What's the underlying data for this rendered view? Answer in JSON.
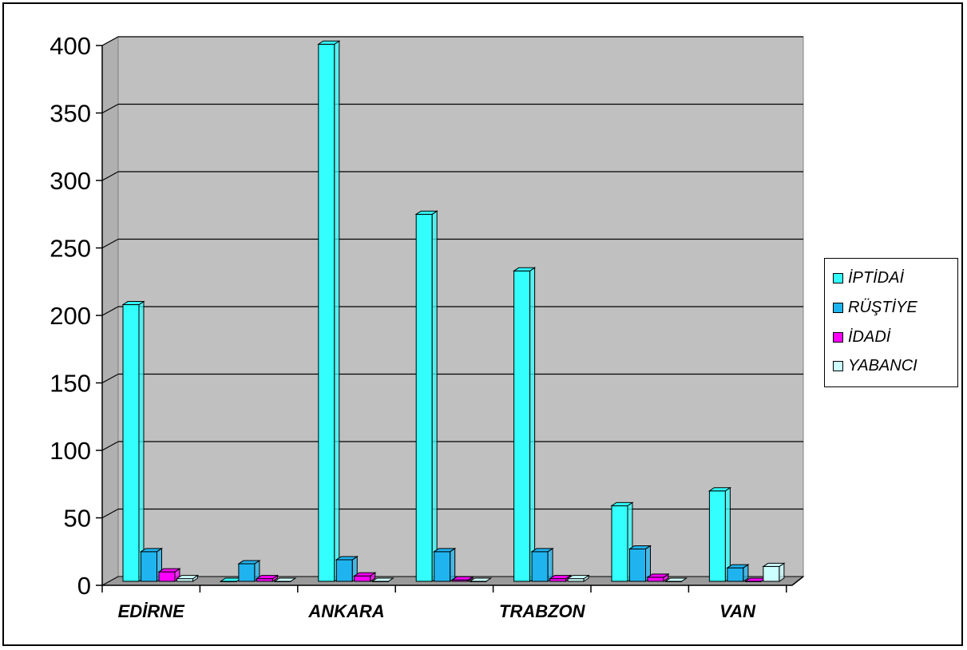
{
  "chart_data": {
    "type": "bar",
    "categories": [
      "EDİRNE",
      "",
      "ANKARA",
      "",
      "TRABZON",
      "",
      "VAN"
    ],
    "series": [
      {
        "name": "İPTİDAİ",
        "values": [
          205,
          0,
          398,
          272,
          230,
          56,
          67
        ],
        "color": "#33FFFF"
      },
      {
        "name": "RÜŞTİYE",
        "values": [
          22,
          13,
          16,
          22,
          22,
          24,
          10
        ],
        "color": "#1FB4F0"
      },
      {
        "name": "İDADİ",
        "values": [
          7,
          2,
          4,
          1,
          2,
          3,
          0
        ],
        "color": "#FF00FF"
      },
      {
        "name": "YABANCI",
        "values": [
          2,
          0,
          0,
          0,
          2,
          0,
          11
        ],
        "color": "#CCFFFF"
      }
    ],
    "ylim": [
      0,
      400
    ],
    "yticks": [
      "0",
      "50",
      "100",
      "150",
      "200",
      "250",
      "300",
      "350",
      "400"
    ],
    "grid": true,
    "legend_position": "right",
    "wall_color": "#C0C0C0"
  }
}
